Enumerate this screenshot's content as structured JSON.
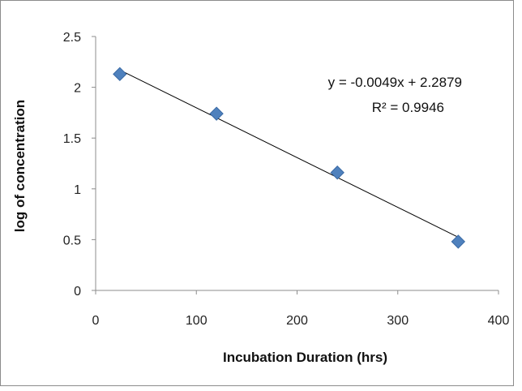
{
  "chart_data": {
    "type": "scatter",
    "title": "",
    "xlabel": "Incubation Duration (hrs)",
    "ylabel": "log of concentration",
    "xlim": [
      0,
      400
    ],
    "ylim": [
      0,
      2.5
    ],
    "x_ticks": [
      "0",
      "100",
      "200",
      "300",
      "400"
    ],
    "y_ticks": [
      "0",
      "0.5",
      "1",
      "1.5",
      "2",
      "2.5"
    ],
    "grid": false,
    "legend": "none",
    "series": [
      {
        "points": [
          {
            "x": 24,
            "y": 2.13
          },
          {
            "x": 120,
            "y": 1.74
          },
          {
            "x": 240,
            "y": 1.16
          },
          {
            "x": 360,
            "y": 0.48
          }
        ],
        "marker": "diamond",
        "color": "#4f81bd"
      }
    ],
    "trendline": {
      "slope": -0.0049,
      "intercept": 2.2879,
      "x_range": [
        24,
        360
      ],
      "equation_text": "y = -0.0049x + 2.2879",
      "r2_text": "R² = 0.9946",
      "color": "#000000"
    }
  }
}
